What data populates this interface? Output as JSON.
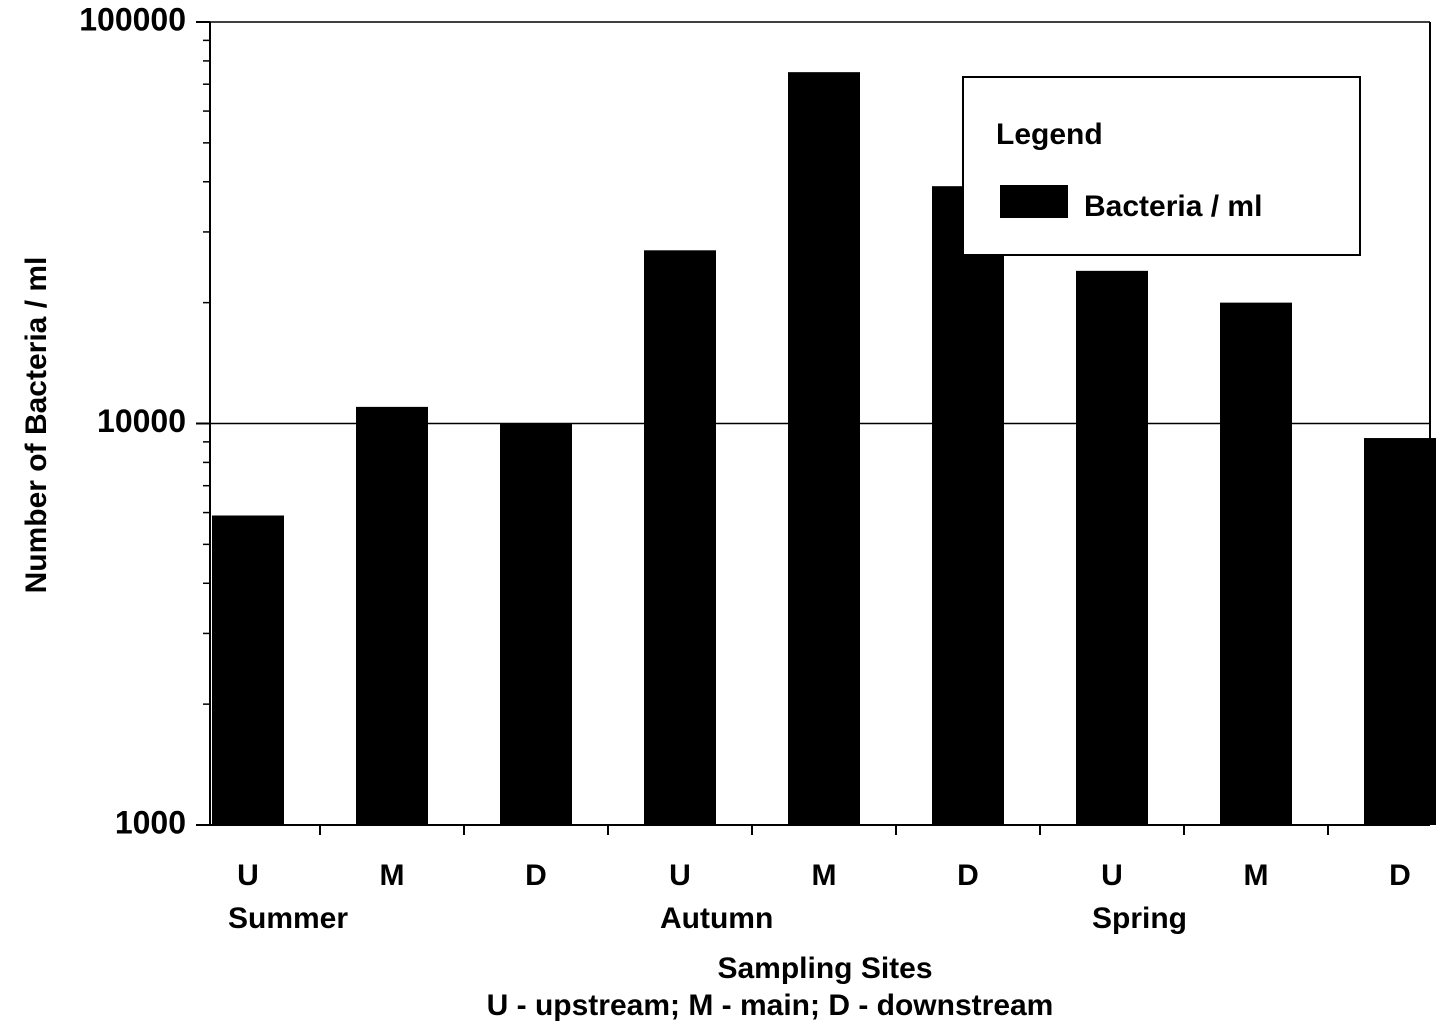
{
  "chart_data": {
    "type": "bar",
    "y_label": "Number of Bacteria / ml",
    "x_label": "Sampling Sites",
    "x_note": "U - upstream; M - main;  D - downstream",
    "categories": [
      "U",
      "M",
      "D",
      "U",
      "M",
      "D",
      "U",
      "M",
      "D"
    ],
    "groups": [
      "Summer",
      "Autumn",
      "Spring"
    ],
    "legend_title": "Legend",
    "legend": "top-right",
    "series": [
      {
        "name": "Bacteria / ml",
        "color": "#000000",
        "values": [
          5900,
          11000,
          10000,
          27000,
          75000,
          39000,
          24000,
          20000,
          9200
        ]
      }
    ],
    "log_y": true,
    "ylim": [
      1000,
      100000
    ],
    "yticks": [
      1000,
      10000,
      100000
    ],
    "minor_yticks": [
      2000,
      3000,
      4000,
      5000,
      6000,
      7000,
      8000,
      9000,
      20000,
      30000,
      40000,
      50000,
      60000,
      70000,
      80000,
      90000
    ],
    "grid": true
  }
}
